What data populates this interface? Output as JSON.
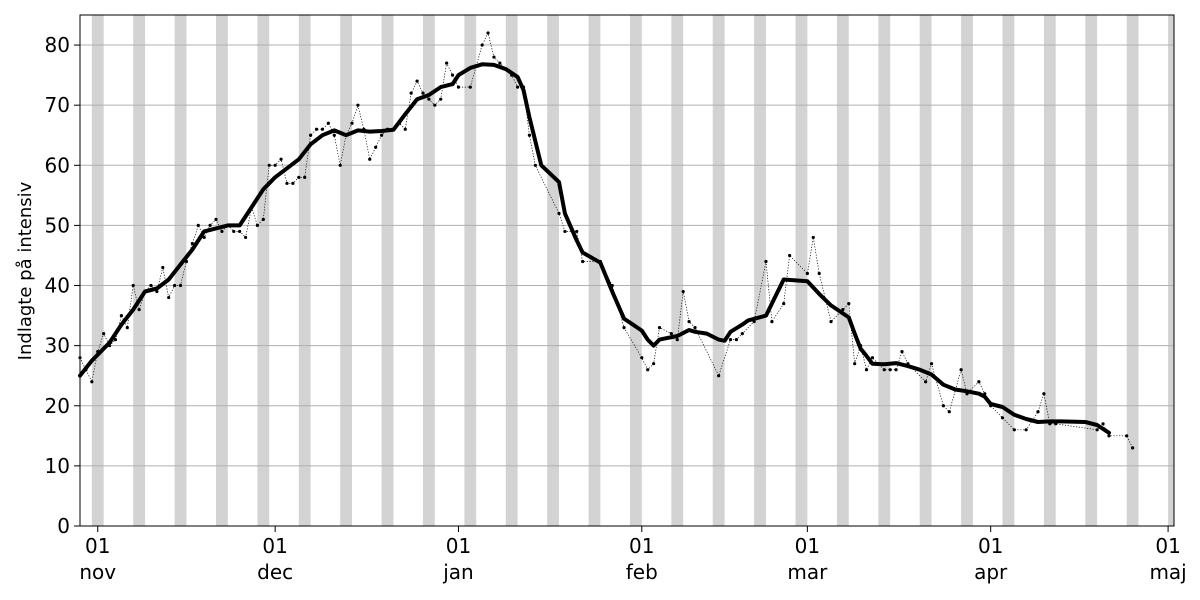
{
  "chart_data": {
    "type": "line",
    "title": "",
    "ylabel": "Indlagte på intensiv",
    "xlabel": "",
    "x_range": [
      "2020-10-29",
      "2021-05-02"
    ],
    "ylim": [
      0,
      85
    ],
    "yticks": [
      0,
      10,
      20,
      30,
      40,
      50,
      60,
      70,
      80
    ],
    "xticks": [
      {
        "date": "2020-11-01",
        "day": "01",
        "month": "nov"
      },
      {
        "date": "2020-12-01",
        "day": "01",
        "month": "dec"
      },
      {
        "date": "2021-01-01",
        "day": "01",
        "month": "jan"
      },
      {
        "date": "2021-02-01",
        "day": "01",
        "month": "feb"
      },
      {
        "date": "2021-03-01",
        "day": "01",
        "month": "mar"
      },
      {
        "date": "2021-04-01",
        "day": "01",
        "month": "apr"
      },
      {
        "date": "2021-05-01",
        "day": "01",
        "month": "maj"
      }
    ],
    "grid": "horizontal",
    "weekend_bands": {
      "color": "#d3d3d3",
      "first_saturday": "2020-10-31"
    },
    "series": [
      {
        "style": "daily-points",
        "color": "#000000",
        "points": [
          [
            "2020-10-29",
            28
          ],
          [
            "2020-10-30",
            26
          ],
          [
            "2020-10-31",
            24
          ],
          [
            "2020-11-01",
            29
          ],
          [
            "2020-11-02",
            32
          ],
          [
            "2020-11-03",
            30
          ],
          [
            "2020-11-04",
            31
          ],
          [
            "2020-11-05",
            35
          ],
          [
            "2020-11-06",
            33
          ],
          [
            "2020-11-07",
            40
          ],
          [
            "2020-11-08",
            36
          ],
          [
            "2020-11-09",
            39
          ],
          [
            "2020-11-10",
            40
          ],
          [
            "2020-11-11",
            39
          ],
          [
            "2020-11-12",
            43
          ],
          [
            "2020-11-13",
            38
          ],
          [
            "2020-11-14",
            40
          ],
          [
            "2020-11-15",
            40
          ],
          [
            "2020-11-16",
            44
          ],
          [
            "2020-11-17",
            47
          ],
          [
            "2020-11-18",
            50
          ],
          [
            "2020-11-19",
            48
          ],
          [
            "2020-11-20",
            50
          ],
          [
            "2020-11-21",
            51
          ],
          [
            "2020-11-22",
            49
          ],
          [
            "2020-11-23",
            50
          ],
          [
            "2020-11-24",
            49
          ],
          [
            "2020-11-25",
            49
          ],
          [
            "2020-11-26",
            48
          ],
          [
            "2020-11-27",
            53
          ],
          [
            "2020-11-28",
            50
          ],
          [
            "2020-11-29",
            51
          ],
          [
            "2020-11-30",
            60
          ],
          [
            "2020-12-01",
            60
          ],
          [
            "2020-12-02",
            61
          ],
          [
            "2020-12-03",
            57
          ],
          [
            "2020-12-04",
            57
          ],
          [
            "2020-12-05",
            58
          ],
          [
            "2020-12-06",
            58
          ],
          [
            "2020-12-07",
            65
          ],
          [
            "2020-12-08",
            66
          ],
          [
            "2020-12-09",
            66
          ],
          [
            "2020-12-10",
            67
          ],
          [
            "2020-12-11",
            65
          ],
          [
            "2020-12-12",
            60
          ],
          [
            "2020-12-13",
            65
          ],
          [
            "2020-12-14",
            67
          ],
          [
            "2020-12-15",
            70
          ],
          [
            "2020-12-16",
            66
          ],
          [
            "2020-12-17",
            61
          ],
          [
            "2020-12-18",
            63
          ],
          [
            "2020-12-19",
            65
          ],
          [
            "2020-12-20",
            66
          ],
          [
            "2020-12-21",
            66
          ],
          [
            "2020-12-22",
            67
          ],
          [
            "2020-12-23",
            66
          ],
          [
            "2020-12-24",
            72
          ],
          [
            "2020-12-25",
            74
          ],
          [
            "2020-12-26",
            72
          ],
          [
            "2020-12-27",
            71
          ],
          [
            "2020-12-28",
            70
          ],
          [
            "2020-12-29",
            71
          ],
          [
            "2020-12-30",
            77
          ],
          [
            "2020-12-31",
            75
          ],
          [
            "2021-01-01",
            73
          ],
          [
            "2021-01-03",
            73
          ],
          [
            "2021-01-05",
            80
          ],
          [
            "2021-01-06",
            82
          ],
          [
            "2021-01-07",
            78
          ],
          [
            "2021-01-08",
            77
          ],
          [
            "2021-01-10",
            75
          ],
          [
            "2021-01-11",
            73
          ],
          [
            "2021-01-12",
            73
          ],
          [
            "2021-01-13",
            65
          ],
          [
            "2021-01-14",
            60
          ],
          [
            "2021-01-18",
            52
          ],
          [
            "2021-01-19",
            49
          ],
          [
            "2021-01-21",
            49
          ],
          [
            "2021-01-22",
            44
          ],
          [
            "2021-01-25",
            44
          ],
          [
            "2021-01-27",
            40
          ],
          [
            "2021-01-29",
            33
          ],
          [
            "2021-02-01",
            28
          ],
          [
            "2021-02-02",
            26
          ],
          [
            "2021-02-03",
            27
          ],
          [
            "2021-02-04",
            33
          ],
          [
            "2021-02-06",
            32
          ],
          [
            "2021-02-07",
            31
          ],
          [
            "2021-02-08",
            39
          ],
          [
            "2021-02-09",
            34
          ],
          [
            "2021-02-10",
            33
          ],
          [
            "2021-02-14",
            25
          ],
          [
            "2021-02-16",
            31
          ],
          [
            "2021-02-17",
            31
          ],
          [
            "2021-02-18",
            32
          ],
          [
            "2021-02-20",
            34
          ],
          [
            "2021-02-22",
            44
          ],
          [
            "2021-02-23",
            34
          ],
          [
            "2021-02-25",
            37
          ],
          [
            "2021-02-26",
            45
          ],
          [
            "2021-03-01",
            42
          ],
          [
            "2021-03-02",
            48
          ],
          [
            "2021-03-03",
            42
          ],
          [
            "2021-03-05",
            34
          ],
          [
            "2021-03-07",
            36
          ],
          [
            "2021-03-08",
            37
          ],
          [
            "2021-03-09",
            27
          ],
          [
            "2021-03-10",
            30
          ],
          [
            "2021-03-11",
            26
          ],
          [
            "2021-03-12",
            28
          ],
          [
            "2021-03-14",
            26
          ],
          [
            "2021-03-15",
            26
          ],
          [
            "2021-03-16",
            26
          ],
          [
            "2021-03-17",
            29
          ],
          [
            "2021-03-18",
            27
          ],
          [
            "2021-03-21",
            24
          ],
          [
            "2021-03-22",
            27
          ],
          [
            "2021-03-24",
            20
          ],
          [
            "2021-03-25",
            19
          ],
          [
            "2021-03-27",
            26
          ],
          [
            "2021-03-28",
            22
          ],
          [
            "2021-03-30",
            24
          ],
          [
            "2021-03-31",
            22
          ],
          [
            "2021-04-01",
            20
          ],
          [
            "2021-04-03",
            18
          ],
          [
            "2021-04-05",
            16
          ],
          [
            "2021-04-07",
            16
          ],
          [
            "2021-04-09",
            19
          ],
          [
            "2021-04-10",
            22
          ],
          [
            "2021-04-11",
            17
          ],
          [
            "2021-04-12",
            17
          ],
          [
            "2021-04-19",
            16
          ],
          [
            "2021-04-20",
            17
          ],
          [
            "2021-04-21",
            15
          ],
          [
            "2021-04-24",
            15
          ],
          [
            "2021-04-25",
            13
          ]
        ]
      },
      {
        "style": "moving-average",
        "color": "#000000",
        "points": [
          [
            "2020-10-29",
            25
          ],
          [
            "2020-10-31",
            27.5
          ],
          [
            "2020-11-03",
            30.5
          ],
          [
            "2020-11-05",
            33.5
          ],
          [
            "2020-11-07",
            36
          ],
          [
            "2020-11-09",
            39
          ],
          [
            "2020-11-11",
            39.5
          ],
          [
            "2020-11-13",
            41
          ],
          [
            "2020-11-15",
            43.5
          ],
          [
            "2020-11-17",
            46
          ],
          [
            "2020-11-19",
            49
          ],
          [
            "2020-11-21",
            49.5
          ],
          [
            "2020-11-23",
            50
          ],
          [
            "2020-11-25",
            50
          ],
          [
            "2020-11-27",
            53
          ],
          [
            "2020-11-29",
            56
          ],
          [
            "2020-12-01",
            58
          ],
          [
            "2020-12-03",
            59.5
          ],
          [
            "2020-12-05",
            61
          ],
          [
            "2020-12-07",
            63.5
          ],
          [
            "2020-12-09",
            65
          ],
          [
            "2020-12-11",
            65.8
          ],
          [
            "2020-12-13",
            65
          ],
          [
            "2020-12-15",
            65.8
          ],
          [
            "2020-12-17",
            65.6
          ],
          [
            "2020-12-19",
            65.7
          ],
          [
            "2020-12-21",
            65.9
          ],
          [
            "2020-12-23",
            68.5
          ],
          [
            "2020-12-25",
            71
          ],
          [
            "2020-12-27",
            71.7
          ],
          [
            "2020-12-29",
            73
          ],
          [
            "2020-12-31",
            73.5
          ],
          [
            "2021-01-01",
            75
          ],
          [
            "2021-01-03",
            76.2
          ],
          [
            "2021-01-05",
            76.8
          ],
          [
            "2021-01-07",
            76.7
          ],
          [
            "2021-01-09",
            76
          ],
          [
            "2021-01-11",
            74.7
          ],
          [
            "2021-01-12",
            72.5
          ],
          [
            "2021-01-13",
            68
          ],
          [
            "2021-01-15",
            60
          ],
          [
            "2021-01-18",
            57.2
          ],
          [
            "2021-01-19",
            52
          ],
          [
            "2021-01-21",
            47.5
          ],
          [
            "2021-01-22",
            45.5
          ],
          [
            "2021-01-25",
            43.8
          ],
          [
            "2021-01-27",
            39
          ],
          [
            "2021-01-29",
            34.5
          ],
          [
            "2021-02-01",
            32.5
          ],
          [
            "2021-02-02",
            31
          ],
          [
            "2021-02-03",
            30
          ],
          [
            "2021-02-04",
            31
          ],
          [
            "2021-02-07",
            31.6
          ],
          [
            "2021-02-09",
            32.6
          ],
          [
            "2021-02-10",
            32.3
          ],
          [
            "2021-02-12",
            32
          ],
          [
            "2021-02-14",
            31
          ],
          [
            "2021-02-15",
            30.8
          ],
          [
            "2021-02-16",
            32.3
          ],
          [
            "2021-02-18",
            33.5
          ],
          [
            "2021-02-19",
            34.2
          ],
          [
            "2021-02-22",
            35
          ],
          [
            "2021-02-24",
            39
          ],
          [
            "2021-02-25",
            41
          ],
          [
            "2021-03-01",
            40.7
          ],
          [
            "2021-03-03",
            38.6
          ],
          [
            "2021-03-05",
            36.7
          ],
          [
            "2021-03-08",
            34.7
          ],
          [
            "2021-03-09",
            32
          ],
          [
            "2021-03-10",
            29.5
          ],
          [
            "2021-03-11",
            28.3
          ],
          [
            "2021-03-12",
            27
          ],
          [
            "2021-03-14",
            26.9
          ],
          [
            "2021-03-16",
            27.1
          ],
          [
            "2021-03-18",
            26.6
          ],
          [
            "2021-03-20",
            26
          ],
          [
            "2021-03-22",
            25.2
          ],
          [
            "2021-03-24",
            23.5
          ],
          [
            "2021-03-26",
            22.7
          ],
          [
            "2021-03-28",
            22.4
          ],
          [
            "2021-03-30",
            22
          ],
          [
            "2021-03-31",
            21.5
          ],
          [
            "2021-04-01",
            20.3
          ],
          [
            "2021-04-03",
            19.8
          ],
          [
            "2021-04-05",
            18.5
          ],
          [
            "2021-04-07",
            17.8
          ],
          [
            "2021-04-09",
            17.3
          ],
          [
            "2021-04-11",
            17.4
          ],
          [
            "2021-04-13",
            17.4
          ],
          [
            "2021-04-17",
            17.3
          ],
          [
            "2021-04-19",
            16.8
          ],
          [
            "2021-04-21",
            15.5
          ]
        ]
      }
    ]
  }
}
